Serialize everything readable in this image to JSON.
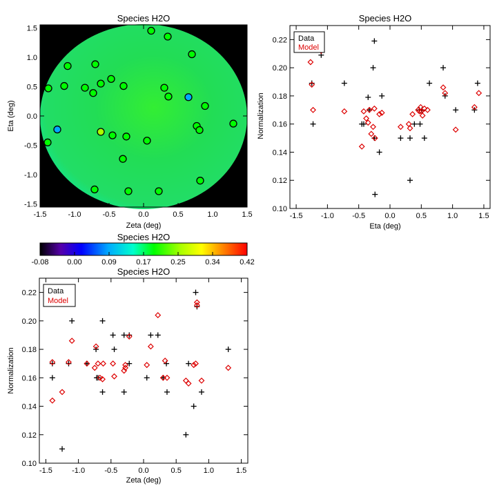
{
  "chart_data": [
    {
      "type": "scatter",
      "title": "Species H2O",
      "xlabel": "Zeta (deg)",
      "ylabel": "Eta (deg)",
      "xlim": [
        -1.5,
        1.5
      ],
      "ylim": [
        -1.55,
        1.55
      ],
      "xticks": [
        "-1.5",
        "-1.0",
        "-0.5",
        "0.0",
        "0.5",
        "1.0",
        "1.5"
      ],
      "yticks": [
        "-1.5",
        "-1.0",
        "-0.5",
        "0.0",
        "0.5",
        "1.0",
        "1.5"
      ],
      "background_color": "#000000",
      "field_colors": [
        "#22dd55",
        "#33ee33",
        "#22dd66",
        "#00eebb"
      ],
      "points": [
        {
          "x": 0.11,
          "y": 1.45,
          "v": 0.2
        },
        {
          "x": 0.35,
          "y": 1.35,
          "v": 0.2
        },
        {
          "x": 0.7,
          "y": 1.05,
          "v": 0.2
        },
        {
          "x": -1.1,
          "y": 0.85,
          "v": 0.2
        },
        {
          "x": -0.7,
          "y": 0.88,
          "v": 0.2
        },
        {
          "x": -0.47,
          "y": 0.63,
          "v": 0.2
        },
        {
          "x": -0.62,
          "y": 0.55,
          "v": 0.2
        },
        {
          "x": -1.15,
          "y": 0.51,
          "v": 0.2
        },
        {
          "x": -0.85,
          "y": 0.48,
          "v": 0.2
        },
        {
          "x": -0.29,
          "y": 0.51,
          "v": 0.2
        },
        {
          "x": 0.3,
          "y": 0.48,
          "v": 0.2
        },
        {
          "x": 0.36,
          "y": 0.33,
          "v": 0.2
        },
        {
          "x": 0.65,
          "y": 0.32,
          "v": 0.09
        },
        {
          "x": 0.89,
          "y": 0.17,
          "v": 0.2
        },
        {
          "x": -1.38,
          "y": 0.47,
          "v": 0.2
        },
        {
          "x": -0.73,
          "y": 0.39,
          "v": 0.2
        },
        {
          "x": -1.25,
          "y": -0.23,
          "v": 0.09
        },
        {
          "x": -0.62,
          "y": -0.27,
          "v": 0.25
        },
        {
          "x": -0.45,
          "y": -0.33,
          "v": 0.2
        },
        {
          "x": -0.25,
          "y": -0.35,
          "v": 0.2
        },
        {
          "x": 0.05,
          "y": -0.42,
          "v": 0.2
        },
        {
          "x": 0.77,
          "y": -0.17,
          "v": 0.2
        },
        {
          "x": 0.81,
          "y": -0.24,
          "v": 0.2
        },
        {
          "x": 1.3,
          "y": -0.13,
          "v": 0.2
        },
        {
          "x": -1.39,
          "y": -0.45,
          "v": 0.2
        },
        {
          "x": -0.3,
          "y": -0.73,
          "v": 0.2
        },
        {
          "x": -0.71,
          "y": -1.25,
          "v": 0.2
        },
        {
          "x": -0.22,
          "y": -1.28,
          "v": 0.2
        },
        {
          "x": 0.22,
          "y": -1.28,
          "v": 0.2
        },
        {
          "x": 0.82,
          "y": -1.1,
          "v": 0.2
        }
      ]
    },
    {
      "type": "scatter",
      "title": "Species H2O",
      "xlabel": "Eta (deg)",
      "ylabel": "Normalization",
      "xlim": [
        -1.6,
        1.6
      ],
      "ylim": [
        0.1,
        0.23
      ],
      "xticks": [
        "-1.5",
        "-1.0",
        "-0.5",
        "0.0",
        "0.5",
        "1.0",
        "1.5"
      ],
      "yticks": [
        "0.10",
        "0.12",
        "0.14",
        "0.16",
        "0.18",
        "0.20",
        "0.22"
      ],
      "legend": {
        "position": "top-left",
        "entries": [
          "Data",
          "Model"
        ]
      },
      "series": [
        {
          "name": "Data",
          "marker": "plus",
          "color": "#000000",
          "points": [
            [
              -1.25,
              0.189
            ],
            [
              -1.23,
              0.16
            ],
            [
              -1.1,
              0.209
            ],
            [
              -0.73,
              0.189
            ],
            [
              -0.45,
              0.16
            ],
            [
              -0.42,
              0.16
            ],
            [
              -0.35,
              0.179
            ],
            [
              -0.33,
              0.17
            ],
            [
              -0.27,
              0.2
            ],
            [
              -0.25,
              0.219
            ],
            [
              -0.25,
              0.15
            ],
            [
              -0.24,
              0.11
            ],
            [
              -0.17,
              0.14
            ],
            [
              -0.13,
              0.18
            ],
            [
              0.17,
              0.15
            ],
            [
              0.32,
              0.15
            ],
            [
              0.32,
              0.12
            ],
            [
              0.39,
              0.16
            ],
            [
              0.47,
              0.17
            ],
            [
              0.48,
              0.16
            ],
            [
              0.51,
              0.17
            ],
            [
              0.55,
              0.15
            ],
            [
              0.63,
              0.189
            ],
            [
              0.85,
              0.2
            ],
            [
              0.88,
              0.18
            ],
            [
              1.05,
              0.17
            ],
            [
              1.35,
              0.17
            ],
            [
              1.4,
              0.189
            ]
          ]
        },
        {
          "name": "Model",
          "marker": "diamond",
          "color": "#dd0000",
          "points": [
            [
              -1.27,
              0.204
            ],
            [
              -1.25,
              0.188
            ],
            [
              -1.23,
              0.17
            ],
            [
              -1.1,
              0.212
            ],
            [
              -0.73,
              0.169
            ],
            [
              -0.45,
              0.144
            ],
            [
              -0.42,
              0.169
            ],
            [
              -0.38,
              0.164
            ],
            [
              -0.35,
              0.161
            ],
            [
              -0.33,
              0.17
            ],
            [
              -0.3,
              0.153
            ],
            [
              -0.27,
              0.158
            ],
            [
              -0.25,
              0.171
            ],
            [
              -0.24,
              0.15
            ],
            [
              -0.17,
              0.167
            ],
            [
              -0.13,
              0.168
            ],
            [
              0.17,
              0.158
            ],
            [
              0.3,
              0.16
            ],
            [
              0.32,
              0.157
            ],
            [
              0.36,
              0.167
            ],
            [
              0.45,
              0.17
            ],
            [
              0.47,
              0.169
            ],
            [
              0.49,
              0.172
            ],
            [
              0.5,
              0.169
            ],
            [
              0.52,
              0.166
            ],
            [
              0.55,
              0.171
            ],
            [
              0.6,
              0.17
            ],
            [
              0.85,
              0.186
            ],
            [
              0.88,
              0.182
            ],
            [
              1.05,
              0.156
            ],
            [
              1.35,
              0.172
            ],
            [
              1.42,
              0.182
            ]
          ]
        }
      ]
    },
    {
      "type": "colorbar",
      "title": "Species H2O",
      "ticks": [
        "-0.08",
        "0.00",
        "0.09",
        "0.17",
        "0.25",
        "0.34",
        "0.42"
      ],
      "range": [
        -0.08,
        0.42
      ],
      "colors": [
        "#000000",
        "#5500aa",
        "#0000ff",
        "#00aaff",
        "#00ffcc",
        "#00ff00",
        "#aaff00",
        "#ffff00",
        "#ff8800",
        "#ff0000"
      ]
    },
    {
      "type": "scatter",
      "title": "Species H2O",
      "xlabel": "Zeta (deg)",
      "ylabel": "Normalization",
      "xlim": [
        -1.6,
        1.6
      ],
      "ylim": [
        0.1,
        0.23
      ],
      "xticks": [
        "-1.5",
        "-1.0",
        "-0.5",
        "0.0",
        "0.5",
        "1.0",
        "1.5"
      ],
      "yticks": [
        "0.10",
        "0.12",
        "0.14",
        "0.16",
        "0.18",
        "0.20",
        "0.22"
      ],
      "legend": {
        "position": "top-left",
        "entries": [
          "Data",
          "Model"
        ]
      },
      "series": [
        {
          "name": "Data",
          "marker": "plus",
          "color": "#000000",
          "points": [
            [
              -1.4,
              0.17
            ],
            [
              -1.4,
              0.16
            ],
            [
              -1.25,
              0.11
            ],
            [
              -1.15,
              0.17
            ],
            [
              -1.1,
              0.2
            ],
            [
              -0.87,
              0.17
            ],
            [
              -0.73,
              0.18
            ],
            [
              -0.72,
              0.16
            ],
            [
              -0.7,
              0.16
            ],
            [
              -0.63,
              0.2
            ],
            [
              -0.63,
              0.15
            ],
            [
              -0.47,
              0.19
            ],
            [
              -0.45,
              0.18
            ],
            [
              -0.3,
              0.19
            ],
            [
              -0.3,
              0.15
            ],
            [
              -0.22,
              0.19
            ],
            [
              -0.22,
              0.17
            ],
            [
              0.05,
              0.16
            ],
            [
              0.11,
              0.19
            ],
            [
              0.22,
              0.19
            ],
            [
              0.3,
              0.16
            ],
            [
              0.35,
              0.17
            ],
            [
              0.36,
              0.15
            ],
            [
              0.65,
              0.12
            ],
            [
              0.69,
              0.17
            ],
            [
              0.77,
              0.14
            ],
            [
              0.8,
              0.22
            ],
            [
              0.82,
              0.21
            ],
            [
              0.89,
              0.15
            ],
            [
              1.3,
              0.18
            ]
          ]
        },
        {
          "name": "Model",
          "marker": "diamond",
          "color": "#dd0000",
          "points": [
            [
              -1.4,
              0.171
            ],
            [
              -1.4,
              0.144
            ],
            [
              -1.25,
              0.15
            ],
            [
              -1.15,
              0.171
            ],
            [
              -1.1,
              0.186
            ],
            [
              -0.87,
              0.17
            ],
            [
              -0.75,
              0.167
            ],
            [
              -0.73,
              0.182
            ],
            [
              -0.7,
              0.17
            ],
            [
              -0.67,
              0.16
            ],
            [
              -0.63,
              0.159
            ],
            [
              -0.62,
              0.17
            ],
            [
              -0.47,
              0.17
            ],
            [
              -0.45,
              0.161
            ],
            [
              -0.3,
              0.165
            ],
            [
              -0.28,
              0.169
            ],
            [
              -0.28,
              0.167
            ],
            [
              -0.22,
              0.189
            ],
            [
              0.05,
              0.169
            ],
            [
              0.11,
              0.182
            ],
            [
              0.22,
              0.204
            ],
            [
              0.3,
              0.16
            ],
            [
              0.33,
              0.172
            ],
            [
              0.36,
              0.16
            ],
            [
              0.65,
              0.158
            ],
            [
              0.69,
              0.156
            ],
            [
              0.77,
              0.169
            ],
            [
              0.8,
              0.17
            ],
            [
              0.82,
              0.213
            ],
            [
              0.82,
              0.211
            ],
            [
              0.89,
              0.158
            ],
            [
              1.3,
              0.167
            ]
          ]
        }
      ]
    }
  ]
}
